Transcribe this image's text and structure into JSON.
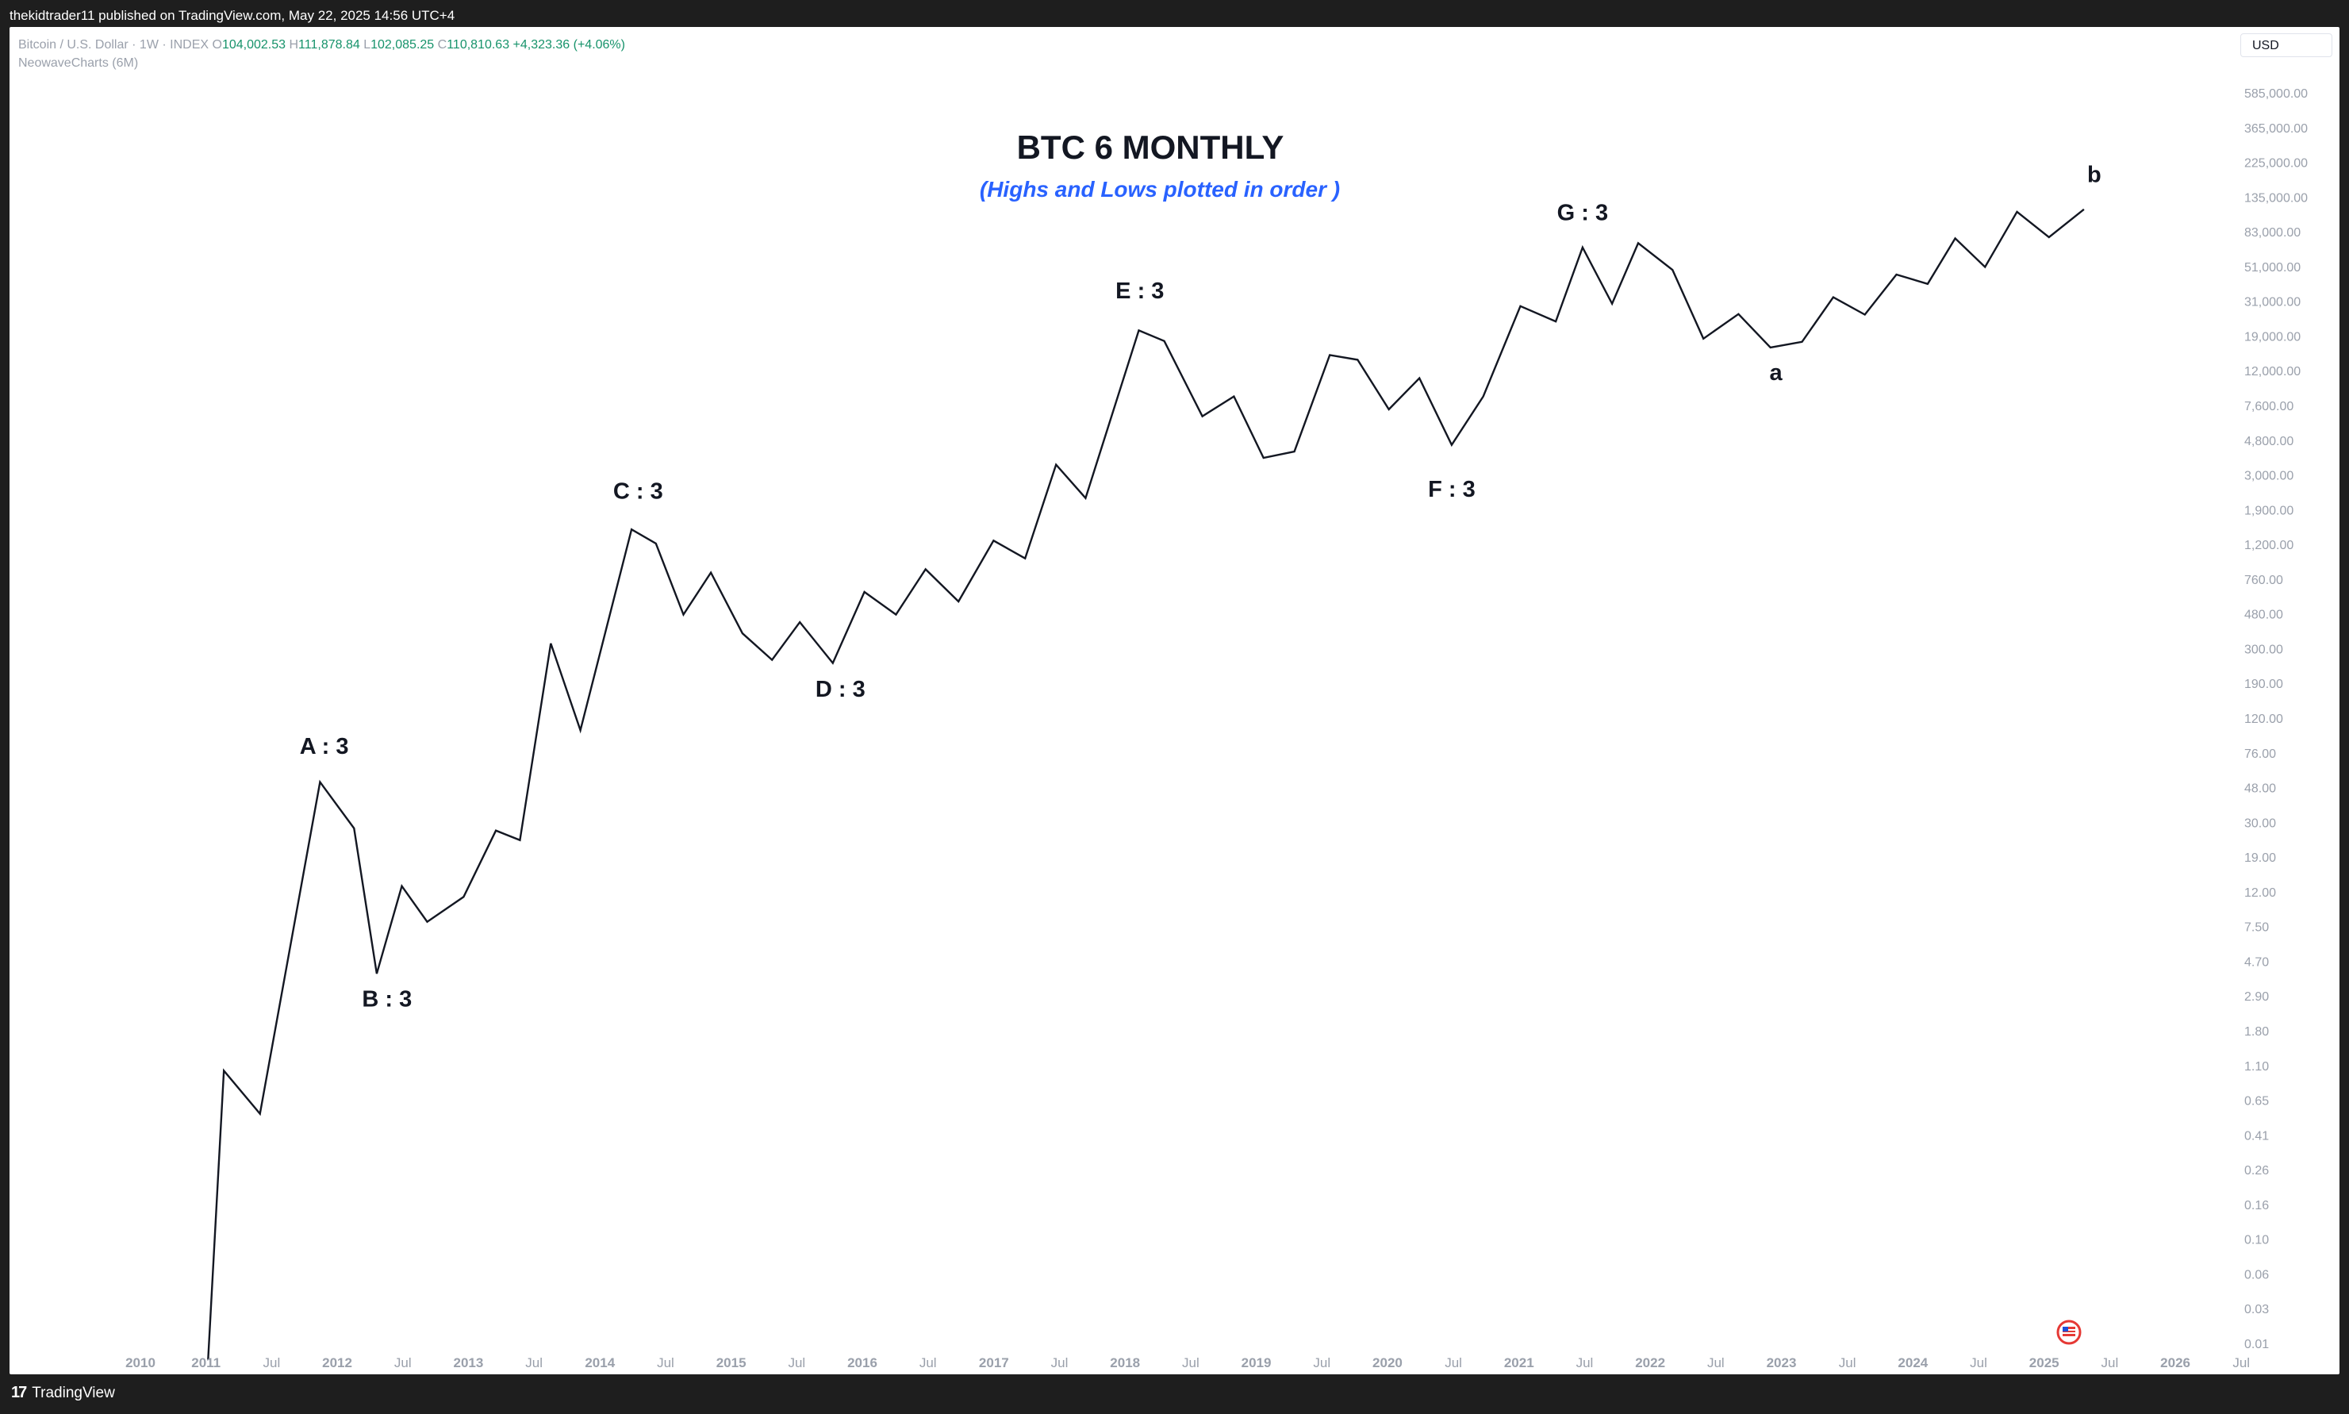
{
  "header": {
    "text": "thekidtrader11 published on TradingView.com, May 22, 2025 14:56 UTC+4"
  },
  "legend": {
    "symbol": "Bitcoin / U.S. Dollar · 1W · INDEX",
    "open_label": "O",
    "open": "104,002.53",
    "high_label": "H",
    "high": "111,878.84",
    "low_label": "L",
    "low": "102,085.25",
    "close_label": "C",
    "close": "110,810.63",
    "change": "+4,323.36 (+4.06%)",
    "indicator": "NeowaveCharts (6M)"
  },
  "currency": "USD",
  "footer": {
    "brand_logo": "17",
    "brand_name": "TradingView"
  },
  "colors": {
    "line": "#131722",
    "subtitle": "#2962ff",
    "up": "#17936b",
    "axis_text": "#9aa0ab"
  },
  "chart_data": {
    "type": "line",
    "title": "BTC 6 MONTHLY",
    "subtitle": "(Highs and Lows plotted in order )",
    "y_scale": "log",
    "y_ticks": [
      "585,000.00",
      "365,000.00",
      "225,000.00",
      "135,000.00",
      "83,000.00",
      "51,000.00",
      "31,000.00",
      "19,000.00",
      "12,000.00",
      "7,600.00",
      "4,800.00",
      "3,000.00",
      "1,900.00",
      "1,200.00",
      "760.00",
      "480.00",
      "300.00",
      "190.00",
      "120.00",
      "76.00",
      "48.00",
      "30.00",
      "19.00",
      "12.00",
      "7.50",
      "4.70",
      "2.90",
      "1.80",
      "1.10",
      "0.65",
      "0.41",
      "0.26",
      "0.16",
      "0.10",
      "0.06",
      "0.03",
      "0.01"
    ],
    "x_ticks": [
      "2010",
      "2011",
      "Jul",
      "2012",
      "Jul",
      "2013",
      "Jul",
      "2014",
      "Jul",
      "2015",
      "Jul",
      "2016",
      "Jul",
      "2017",
      "Jul",
      "2018",
      "Jul",
      "2019",
      "Jul",
      "2020",
      "Jul",
      "2021",
      "Jul",
      "2022",
      "Jul",
      "2023",
      "Jul",
      "2024",
      "Jul",
      "2025",
      "Jul",
      "2026",
      "Jul"
    ],
    "x_range": [
      "2010-01-01",
      "2026-10-01"
    ],
    "series": [
      {
        "points": [
          [
            "2010-07-17",
            0.008
          ],
          [
            "2010-09-01",
            0.5
          ],
          [
            "2010-12-15",
            0.27
          ],
          [
            "2011-06-08",
            31
          ],
          [
            "2011-09-15",
            16
          ],
          [
            "2011-11-20",
            2.0
          ],
          [
            "2012-02-01",
            7.0
          ],
          [
            "2012-04-15",
            4.2
          ],
          [
            "2012-07-30",
            6.0
          ],
          [
            "2012-11-01",
            15.5
          ],
          [
            "2013-01-10",
            13.5
          ],
          [
            "2013-04-10",
            225
          ],
          [
            "2013-07-05",
            65
          ],
          [
            "2013-12-01",
            1150
          ],
          [
            "2014-02-10",
            940
          ],
          [
            "2014-05-01",
            340
          ],
          [
            "2014-07-20",
            620
          ],
          [
            "2014-10-20",
            260
          ],
          [
            "2015-01-14",
            178
          ],
          [
            "2015-04-05",
            305
          ],
          [
            "2015-07-10",
            170
          ],
          [
            "2015-10-10",
            470
          ],
          [
            "2016-01-10",
            340
          ],
          [
            "2016-04-05",
            650
          ],
          [
            "2016-07-10",
            410
          ],
          [
            "2016-10-20",
            980
          ],
          [
            "2017-01-20",
            760
          ],
          [
            "2017-04-20",
            2900
          ],
          [
            "2017-07-15",
            1800
          ],
          [
            "2017-12-17",
            19800
          ],
          [
            "2018-03-01",
            17000
          ],
          [
            "2018-06-20",
            5800
          ],
          [
            "2018-09-20",
            7700
          ],
          [
            "2018-12-15",
            3200
          ],
          [
            "2019-03-15",
            3500
          ],
          [
            "2019-06-26",
            13900
          ],
          [
            "2019-09-15",
            13000
          ],
          [
            "2019-12-15",
            6400
          ],
          [
            "2020-03-13",
            10000
          ],
          [
            "2020-06-15",
            3850
          ],
          [
            "2020-09-15",
            7700
          ],
          [
            "2021-01-01",
            28000
          ],
          [
            "2021-04-14",
            22500
          ],
          [
            "2021-07-01",
            64900
          ],
          [
            "2021-09-25",
            29000
          ],
          [
            "2021-12-10",
            69000
          ],
          [
            "2022-03-20",
            47000
          ],
          [
            "2022-06-18",
            17600
          ],
          [
            "2022-09-28",
            25000
          ],
          [
            "2022-12-30",
            15500
          ],
          [
            "2023-04-01",
            16800
          ],
          [
            "2023-07-01",
            31800
          ],
          [
            "2023-10-01",
            24800
          ],
          [
            "2024-01-01",
            44000
          ],
          [
            "2024-04-01",
            38500
          ],
          [
            "2024-06-20",
            73800
          ],
          [
            "2024-09-15",
            49000
          ],
          [
            "2024-12-17",
            108000
          ],
          [
            "2025-03-20",
            75000
          ],
          [
            "2025-06-30",
            111900
          ]
        ]
      }
    ],
    "annotations": [
      {
        "text": "A : 3",
        "x": "2011-06-20",
        "y": 52
      },
      {
        "text": "B : 3",
        "x": "2011-12-20",
        "y": 1.4
      },
      {
        "text": "C : 3",
        "x": "2013-12-20",
        "y": 2000
      },
      {
        "text": "D : 3",
        "x": "2015-08-01",
        "y": 118
      },
      {
        "text": "E : 3",
        "x": "2017-12-20",
        "y": 35000
      },
      {
        "text": "F : 3",
        "x": "2020-06-15",
        "y": 2050
      },
      {
        "text": "G : 3",
        "x": "2021-07-01",
        "y": 107000
      },
      {
        "text": "a",
        "x": "2023-01-15",
        "y": 10900
      },
      {
        "text": "b",
        "x": "2025-07-30",
        "y": 185000
      }
    ]
  }
}
